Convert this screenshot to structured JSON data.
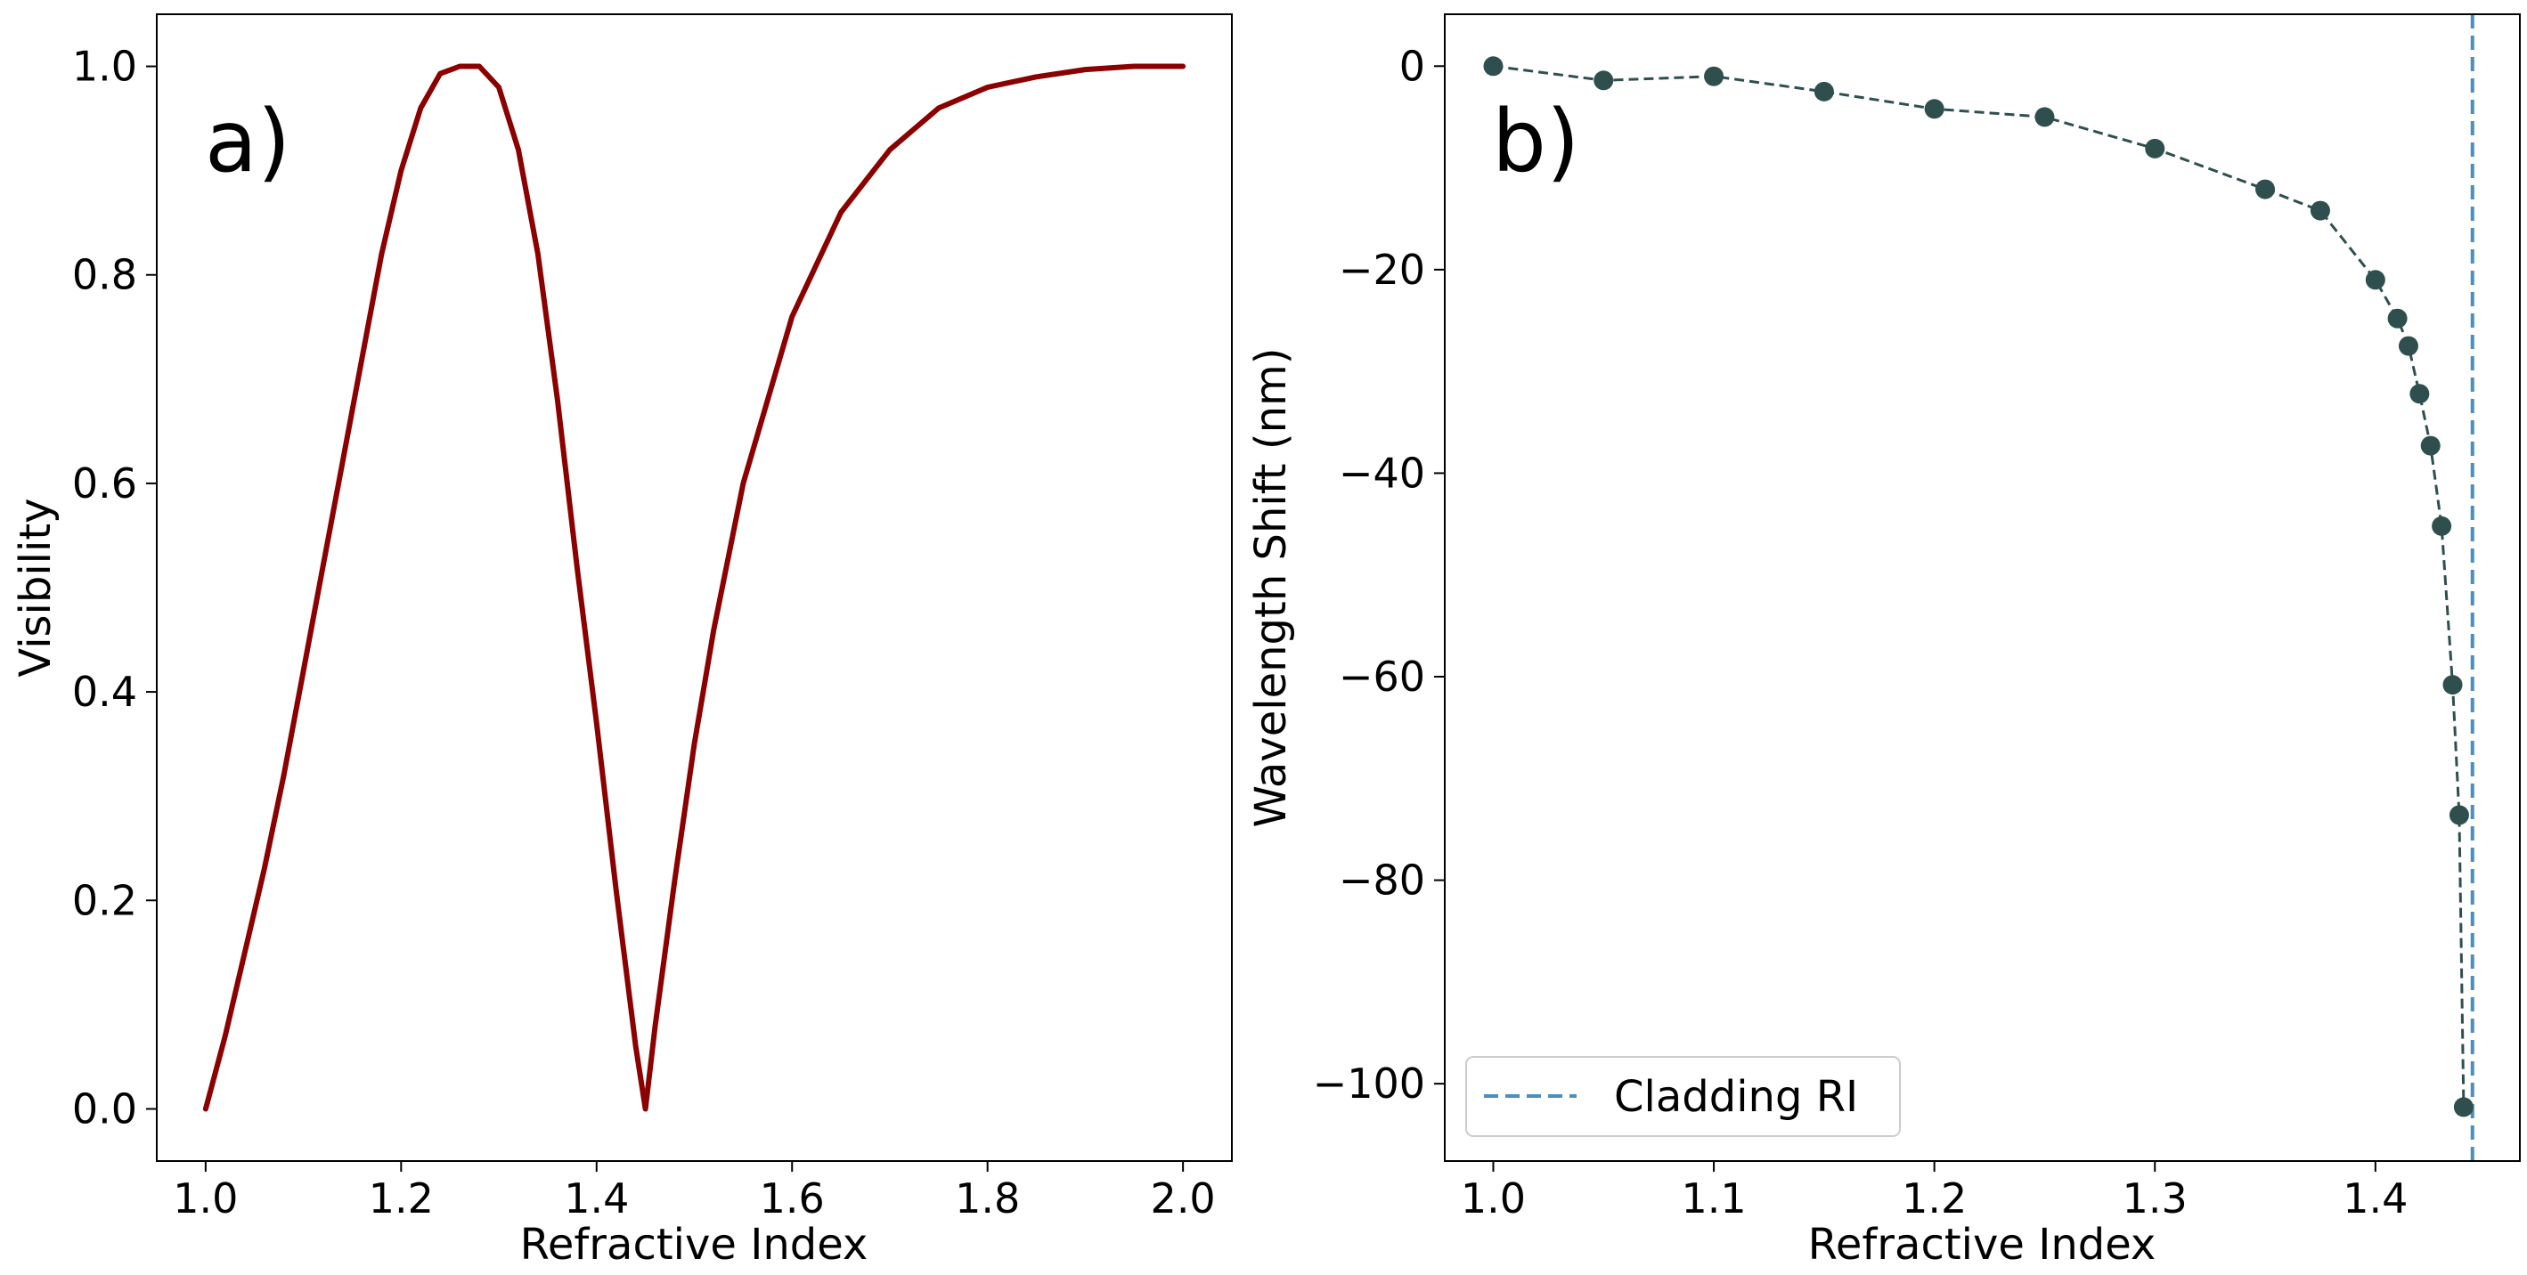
{
  "chart_data": [
    {
      "type": "line",
      "panel_label": "a)",
      "xlabel": "Refractive Index",
      "ylabel": "Visibility",
      "xlim": [
        0.95,
        2.05
      ],
      "ylim": [
        -0.05,
        1.05
      ],
      "xticks": [
        1.0,
        1.2,
        1.4,
        1.6,
        1.8,
        2.0
      ],
      "xtick_labels": [
        "1.0",
        "1.2",
        "1.4",
        "1.6",
        "1.8",
        "2.0"
      ],
      "yticks": [
        0.0,
        0.2,
        0.4,
        0.6,
        0.8,
        1.0
      ],
      "ytick_labels": [
        "0.0",
        "0.2",
        "0.4",
        "0.6",
        "0.8",
        "1.0"
      ],
      "color": "#8b0000",
      "series": [
        {
          "name": "Visibility",
          "x": [
            1.0,
            1.02,
            1.04,
            1.06,
            1.08,
            1.1,
            1.12,
            1.14,
            1.16,
            1.18,
            1.2,
            1.22,
            1.24,
            1.26,
            1.28,
            1.3,
            1.32,
            1.34,
            1.36,
            1.38,
            1.4,
            1.42,
            1.44,
            1.45,
            1.46,
            1.48,
            1.5,
            1.52,
            1.55,
            1.6,
            1.65,
            1.7,
            1.75,
            1.8,
            1.85,
            1.9,
            1.95,
            2.0
          ],
          "values": [
            0.0,
            0.07,
            0.15,
            0.23,
            0.32,
            0.42,
            0.52,
            0.62,
            0.72,
            0.82,
            0.9,
            0.96,
            0.993,
            1.0,
            1.0,
            0.98,
            0.92,
            0.82,
            0.68,
            0.52,
            0.37,
            0.21,
            0.06,
            0.0,
            0.08,
            0.22,
            0.35,
            0.46,
            0.6,
            0.76,
            0.86,
            0.92,
            0.96,
            0.98,
            0.99,
            0.997,
            1.0,
            1.0
          ]
        }
      ]
    },
    {
      "type": "line",
      "panel_label": "b)",
      "xlabel": "Refractive Index",
      "ylabel": "Wavelength Shift (nm)",
      "xlim": [
        0.978,
        1.4655
      ],
      "ylim": [
        -107.6,
        5.1
      ],
      "xticks": [
        1.0,
        1.1,
        1.2,
        1.3,
        1.4
      ],
      "xtick_labels": [
        "1.0",
        "1.1",
        "1.2",
        "1.3",
        "1.4"
      ],
      "yticks": [
        0,
        -20,
        -40,
        -60,
        -80,
        -100
      ],
      "ytick_labels": [
        "0",
        "−20",
        "−40",
        "−60",
        "−80",
        "−100"
      ],
      "color": "#2f4f4f",
      "series": [
        {
          "name": "Wavelength Shift",
          "x": [
            1.0,
            1.05,
            1.1,
            1.15,
            1.2,
            1.25,
            1.3,
            1.35,
            1.375,
            1.4,
            1.41,
            1.415,
            1.42,
            1.425,
            1.43,
            1.435,
            1.438,
            1.44
          ],
          "values": [
            0.0,
            -1.4,
            -1.0,
            -2.5,
            -4.2,
            -5.0,
            -8.1,
            -12.1,
            -14.2,
            -21.0,
            -24.8,
            -27.5,
            -32.2,
            -37.3,
            -45.2,
            -60.8,
            -73.6,
            -102.3
          ]
        }
      ],
      "vline": {
        "x": 1.444,
        "label": "Cladding RI",
        "color": "#4a8fc0"
      },
      "legend": {
        "position": "lower-left",
        "entries": [
          "Cladding RI"
        ]
      }
    }
  ]
}
